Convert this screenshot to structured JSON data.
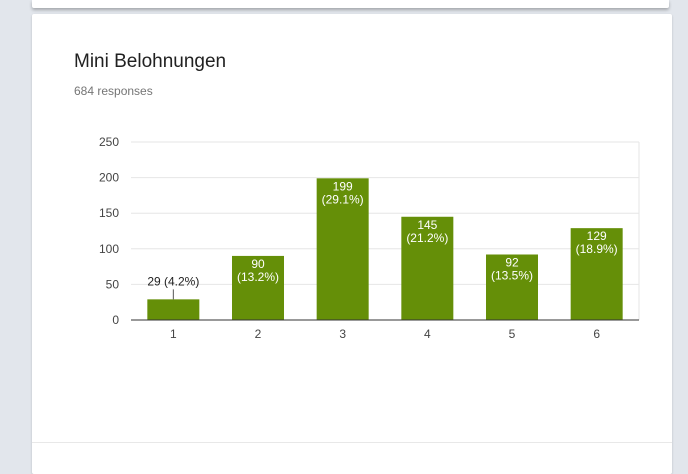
{
  "card": {
    "title": "Mini Belohnungen",
    "responses": "684 responses"
  },
  "chart_data": {
    "type": "bar",
    "categories": [
      "1",
      "2",
      "3",
      "4",
      "5",
      "6"
    ],
    "values": [
      29,
      90,
      199,
      145,
      92,
      129
    ],
    "percent_labels": [
      "(4.2%)",
      "(13.2%)",
      "(29.1%)",
      "(21.2%)",
      "(13.5%)",
      "(18.9%)"
    ],
    "ylim": [
      0,
      250
    ],
    "yticks": [
      0,
      50,
      100,
      150,
      200,
      250
    ],
    "bar_color": "#658f08",
    "grid": true,
    "legend": "none"
  }
}
